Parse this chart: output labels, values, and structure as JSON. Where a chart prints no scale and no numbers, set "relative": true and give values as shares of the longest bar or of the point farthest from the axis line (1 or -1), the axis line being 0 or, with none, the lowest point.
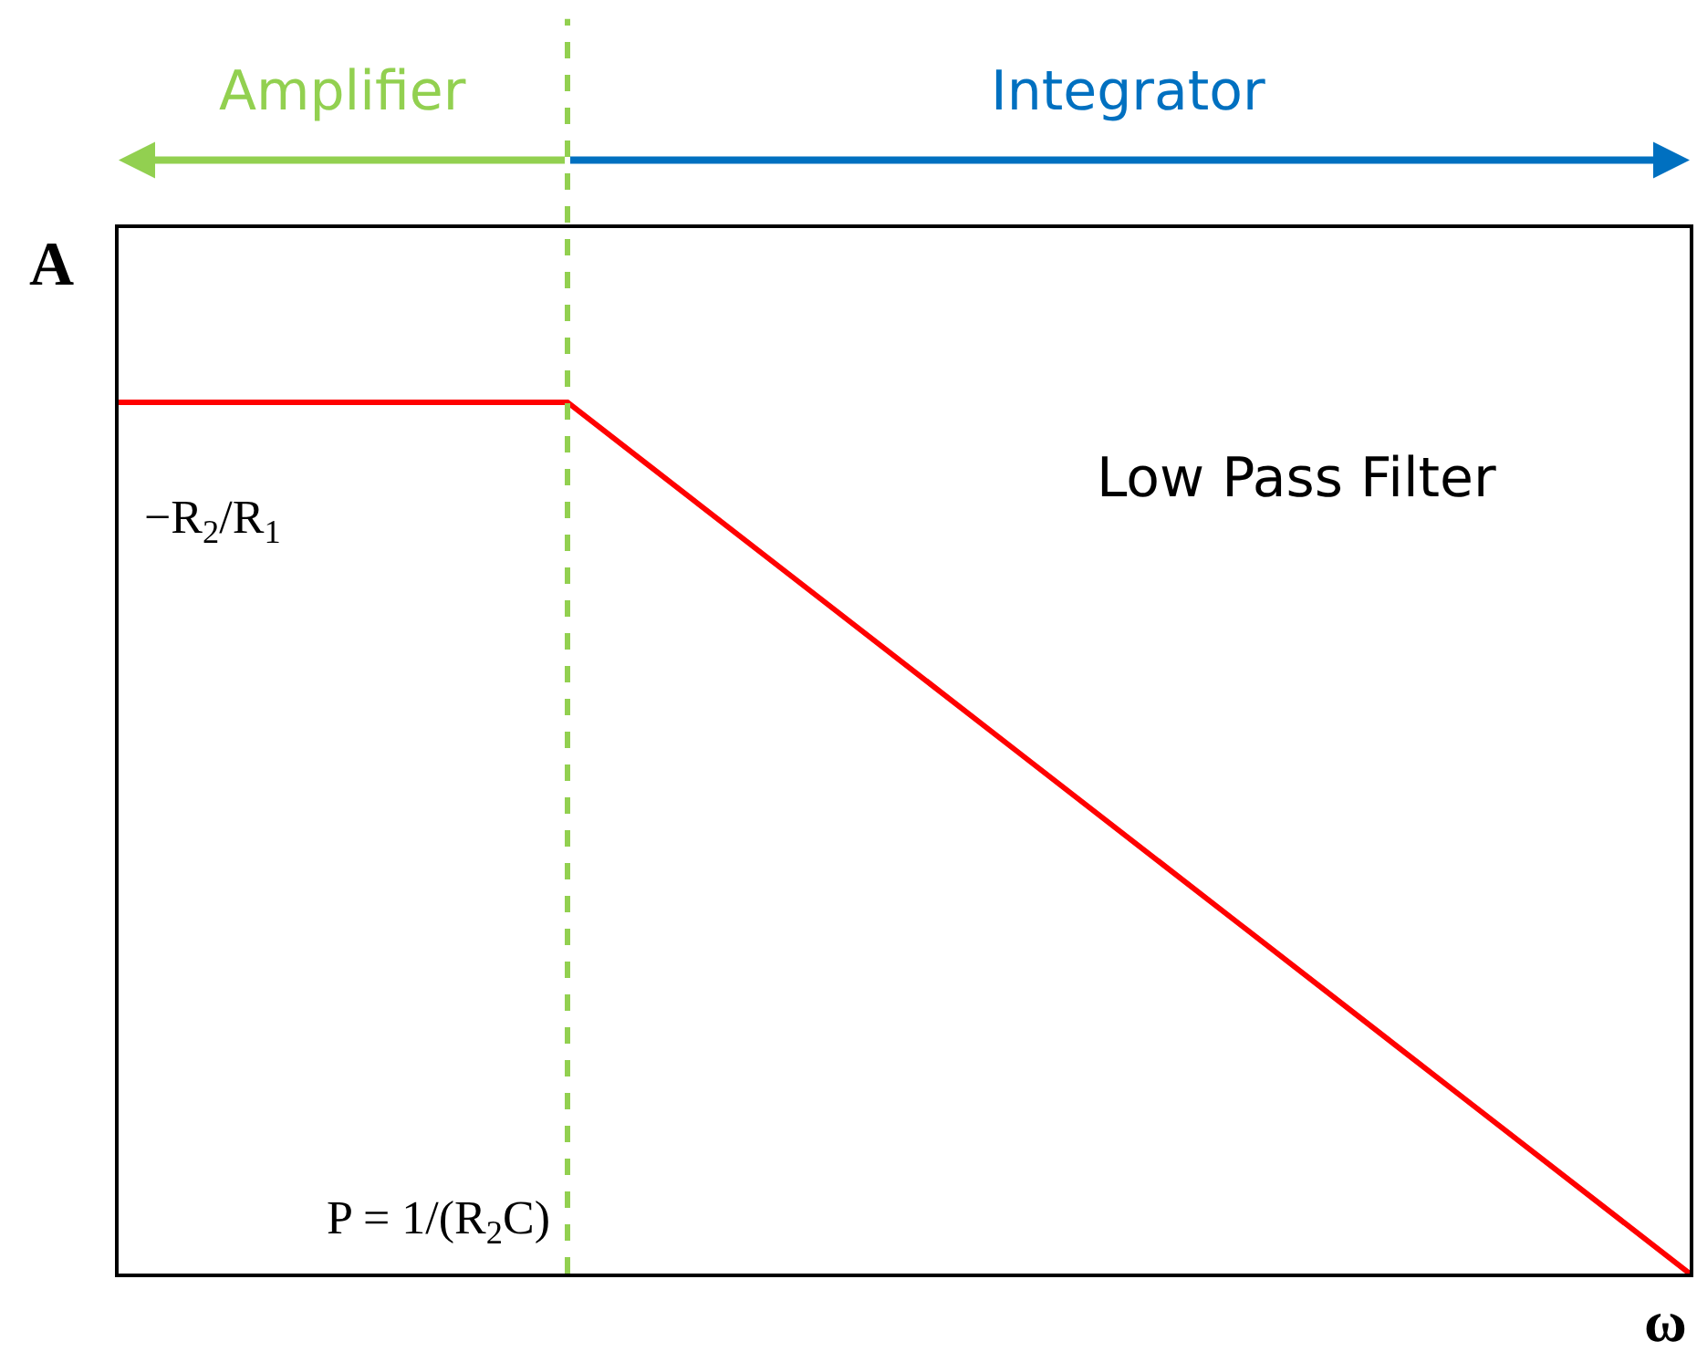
{
  "chart_data": {
    "type": "line",
    "relative": true,
    "xlabel": "ω",
    "ylabel": "A",
    "categories": [
      null,
      null,
      null,
      null,
      null,
      null,
      null,
      null
    ],
    "series": [
      {
        "color": "#ff0000",
        "values": [
          1,
          1,
          1,
          0.8,
          0.6,
          0.4,
          0.2,
          0
        ]
      }
    ],
    "marker": "none",
    "line_style": "solid",
    "annotations": [
      "Amplifier",
      "Integrator",
      "Low Pass Filter",
      "−R$_{2}$/R$_{1}$",
      "P = 1/(R$_{2}$C)"
    ]
  }
}
